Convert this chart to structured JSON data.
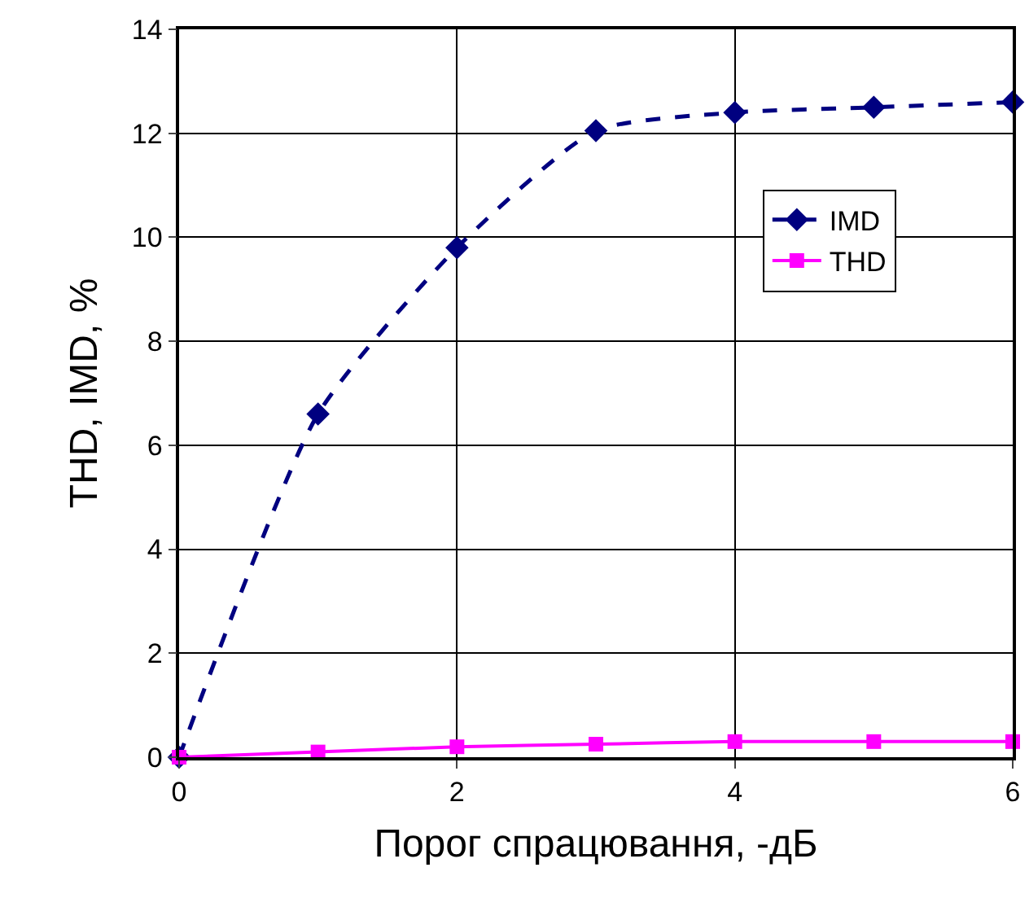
{
  "chart_data": {
    "type": "line",
    "xlabel": "Порог спрацювання, -дБ",
    "ylabel": "THD, IMD, %",
    "x": [
      0,
      1,
      2,
      3,
      4,
      5,
      6
    ],
    "series": [
      {
        "name": "IMD",
        "color": "#000080",
        "values": [
          0,
          6.6,
          9.8,
          12.05,
          12.4,
          12.5,
          12.6
        ],
        "marker": "diamond",
        "line_style": "dashed"
      },
      {
        "name": "THD",
        "color": "#ff00ff",
        "values": [
          0,
          0.1,
          0.2,
          0.25,
          0.3,
          0.3,
          0.3
        ],
        "marker": "square",
        "line_style": "solid"
      }
    ],
    "xlim": [
      0,
      6
    ],
    "xticks": [
      0,
      2,
      4,
      6
    ],
    "ylim": [
      0,
      14
    ],
    "yticks": [
      0,
      2,
      4,
      6,
      8,
      10,
      12,
      14
    ],
    "grid": true,
    "legend": "top right"
  }
}
